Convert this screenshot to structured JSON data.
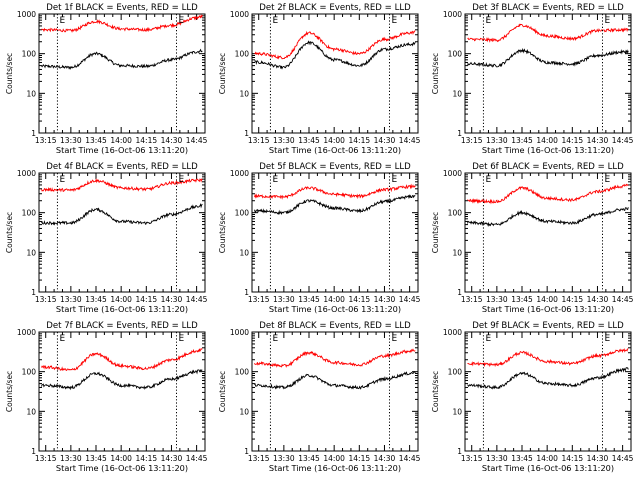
{
  "figure": {
    "xlabel": "Start Time (16-Oct-06 13:11:20)",
    "ylabel": "Counts/sec",
    "x_tick_labels": [
      "13:15",
      "13:30",
      "13:45",
      "14:00",
      "14:15",
      "14:30",
      "14:45"
    ],
    "y_tick_labels": [
      "1",
      "10",
      "100",
      "1000"
    ],
    "marker_labels": [
      "E",
      "E"
    ],
    "colors": {
      "events": "#000000",
      "lld": "#ff0000",
      "axes": "#000000",
      "markers": "#000000"
    }
  },
  "chart_data": [
    {
      "type": "line",
      "title": "Det 1f BLACK = Events, RED = LLD",
      "xlabel": "Start Time (16-Oct-06 13:11:20)",
      "ylabel": "Counts/sec",
      "x": [
        "13:15",
        "13:30",
        "13:45",
        "14:00",
        "14:15",
        "14:30",
        "14:45"
      ],
      "ylim": [
        1,
        1000
      ],
      "yscale": "log",
      "xlim": [
        "13:11",
        "14:50"
      ],
      "markers": [
        "13:22",
        "14:33"
      ],
      "series": [
        {
          "color": "#000000",
          "values": [
            48,
            45,
            100,
            50,
            48,
            70,
            110
          ]
        },
        {
          "color": "#ff0000",
          "values": [
            400,
            380,
            650,
            420,
            400,
            520,
            800
          ]
        }
      ]
    },
    {
      "type": "line",
      "title": "Det 2f BLACK = Events, RED = LLD",
      "xlabel": "Start Time (16-Oct-06 13:11:20)",
      "ylabel": "Counts/sec",
      "x": [
        "13:15",
        "13:30",
        "13:45",
        "14:00",
        "14:15",
        "14:30",
        "14:45"
      ],
      "ylim": [
        1,
        1000
      ],
      "yscale": "log",
      "xlim": [
        "13:11",
        "14:50"
      ],
      "markers": [
        "13:22",
        "14:33"
      ],
      "series": [
        {
          "color": "#000000",
          "values": [
            60,
            45,
            190,
            70,
            50,
            130,
            170
          ]
        },
        {
          "color": "#ff0000",
          "values": [
            100,
            80,
            330,
            130,
            100,
            230,
            330
          ]
        }
      ]
    },
    {
      "type": "line",
      "title": "Det 3f BLACK = Events, RED = LLD",
      "xlabel": "Start Time (16-Oct-06 13:11:20)",
      "ylabel": "Counts/sec",
      "x": [
        "13:15",
        "13:30",
        "13:45",
        "14:00",
        "14:15",
        "14:30",
        "14:45"
      ],
      "ylim": [
        1,
        1000
      ],
      "yscale": "log",
      "xlim": [
        "13:11",
        "14:50"
      ],
      "markers": [
        "13:22",
        "14:33"
      ],
      "series": [
        {
          "color": "#000000",
          "values": [
            55,
            50,
            120,
            60,
            55,
            90,
            110
          ]
        },
        {
          "color": "#ff0000",
          "values": [
            230,
            220,
            520,
            280,
            240,
            380,
            400
          ]
        }
      ]
    },
    {
      "type": "line",
      "title": "Det 4f BLACK = Events, RED = LLD",
      "xlabel": "Start Time (16-Oct-06 13:11:20)",
      "ylabel": "Counts/sec",
      "x": [
        "13:15",
        "13:30",
        "13:45",
        "14:00",
        "14:15",
        "14:30",
        "14:45"
      ],
      "ylim": [
        1,
        1000
      ],
      "yscale": "log",
      "xlim": [
        "13:11",
        "14:50"
      ],
      "markers": [
        "13:22",
        "14:33"
      ],
      "series": [
        {
          "color": "#000000",
          "values": [
            55,
            55,
            120,
            60,
            55,
            90,
            140
          ]
        },
        {
          "color": "#ff0000",
          "values": [
            380,
            370,
            640,
            420,
            390,
            560,
            650
          ]
        }
      ]
    },
    {
      "type": "line",
      "title": "Det 5f BLACK = Events, RED = LLD",
      "xlabel": "Start Time (16-Oct-06 13:11:20)",
      "ylabel": "Counts/sec",
      "x": [
        "13:15",
        "13:30",
        "13:45",
        "14:00",
        "14:15",
        "14:30",
        "14:45"
      ],
      "ylim": [
        1,
        1000
      ],
      "yscale": "log",
      "xlim": [
        "13:11",
        "14:50"
      ],
      "markers": [
        "13:22",
        "14:33"
      ],
      "series": [
        {
          "color": "#000000",
          "values": [
            110,
            100,
            200,
            130,
            110,
            190,
            250
          ]
        },
        {
          "color": "#ff0000",
          "values": [
            260,
            250,
            420,
            290,
            260,
            380,
            450
          ]
        }
      ]
    },
    {
      "type": "line",
      "title": "Det 6f BLACK = Events, RED = LLD",
      "xlabel": "Start Time (16-Oct-06 13:11:20)",
      "ylabel": "Counts/sec",
      "x": [
        "13:15",
        "13:30",
        "13:45",
        "14:00",
        "14:15",
        "14:30",
        "14:45"
      ],
      "ylim": [
        1,
        1000
      ],
      "yscale": "log",
      "xlim": [
        "13:11",
        "14:50"
      ],
      "markers": [
        "13:22",
        "14:33"
      ],
      "series": [
        {
          "color": "#000000",
          "values": [
            55,
            50,
            100,
            60,
            55,
            90,
            120
          ]
        },
        {
          "color": "#ff0000",
          "values": [
            200,
            190,
            420,
            230,
            210,
            340,
            460
          ]
        }
      ]
    },
    {
      "type": "line",
      "title": "Det 7f BLACK = Events, RED = LLD",
      "xlabel": "Start Time (16-Oct-06 13:11:20)",
      "ylabel": "Counts/sec",
      "x": [
        "13:15",
        "13:30",
        "13:45",
        "14:00",
        "14:15",
        "14:30",
        "14:45"
      ],
      "ylim": [
        1,
        1000
      ],
      "yscale": "log",
      "xlim": [
        "13:11",
        "14:50"
      ],
      "markers": [
        "13:22",
        "14:33"
      ],
      "series": [
        {
          "color": "#000000",
          "values": [
            45,
            40,
            90,
            45,
            40,
            65,
            100
          ]
        },
        {
          "color": "#ff0000",
          "values": [
            130,
            110,
            280,
            140,
            120,
            200,
            330
          ]
        }
      ]
    },
    {
      "type": "line",
      "title": "Det 8f BLACK = Events, RED = LLD",
      "xlabel": "Start Time (16-Oct-06 13:11:20)",
      "ylabel": "Counts/sec",
      "x": [
        "13:15",
        "13:30",
        "13:45",
        "14:00",
        "14:15",
        "14:30",
        "14:45"
      ],
      "ylim": [
        1,
        1000
      ],
      "yscale": "log",
      "xlim": [
        "13:11",
        "14:50"
      ],
      "markers": [
        "13:22",
        "14:33"
      ],
      "series": [
        {
          "color": "#000000",
          "values": [
            45,
            40,
            80,
            45,
            40,
            65,
            90
          ]
        },
        {
          "color": "#ff0000",
          "values": [
            160,
            140,
            300,
            170,
            150,
            250,
            330
          ]
        }
      ]
    },
    {
      "type": "line",
      "title": "Det 9f BLACK = Events, RED = LLD",
      "xlabel": "Start Time (16-Oct-06 13:11:20)",
      "ylabel": "Counts/sec",
      "x": [
        "13:15",
        "13:30",
        "13:45",
        "14:00",
        "14:15",
        "14:30",
        "14:45"
      ],
      "ylim": [
        1,
        1000
      ],
      "yscale": "log",
      "xlim": [
        "13:11",
        "14:50"
      ],
      "markers": [
        "13:22",
        "14:33"
      ],
      "series": [
        {
          "color": "#000000",
          "values": [
            45,
            40,
            90,
            50,
            45,
            70,
            110
          ]
        },
        {
          "color": "#ff0000",
          "values": [
            160,
            150,
            300,
            180,
            160,
            250,
            340
          ]
        }
      ]
    }
  ]
}
